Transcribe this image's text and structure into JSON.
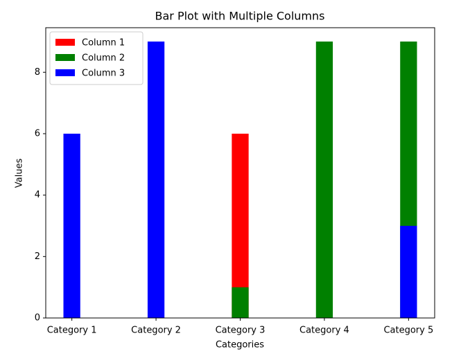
{
  "chart_data": {
    "type": "bar",
    "title": "Bar Plot with Multiple Columns",
    "x_label": "Categories",
    "y_label": "Values",
    "categories": [
      "Category 1",
      "Category 2",
      "Category 3",
      "Category 4",
      "Category 5"
    ],
    "series": [
      {
        "name": "Column 1",
        "color": "#ff0000",
        "values": [
          0,
          0,
          6,
          0,
          0
        ]
      },
      {
        "name": "Column 2",
        "color": "#008000",
        "values": [
          0,
          0,
          1,
          9,
          9
        ]
      },
      {
        "name": "Column 3",
        "color": "#0000ff",
        "values": [
          6,
          9,
          0,
          0,
          3
        ]
      }
    ],
    "ylim": [
      0,
      9.45
    ],
    "yticks": [
      0,
      2,
      4,
      6,
      8
    ],
    "legend": "upper left"
  }
}
